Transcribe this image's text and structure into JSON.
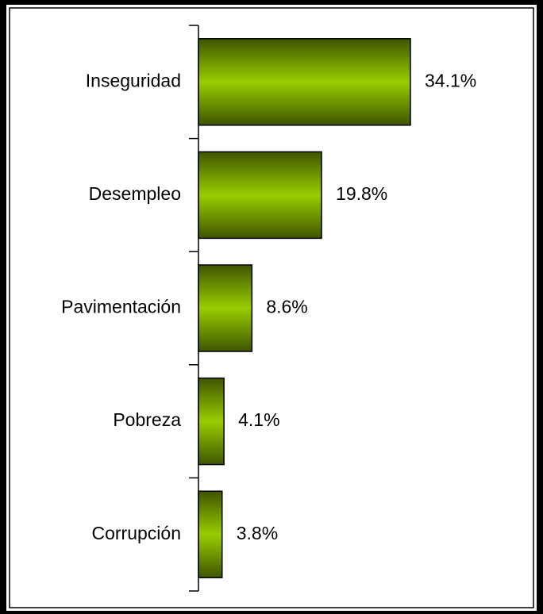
{
  "chart_data": {
    "type": "bar",
    "orientation": "horizontal",
    "categories": [
      "Inseguridad",
      "Desempleo",
      "Pavimentación",
      "Pobreza",
      "Corrupción"
    ],
    "values": [
      34.1,
      19.8,
      8.6,
      4.1,
      3.8
    ],
    "value_labels": [
      "34.1%",
      "19.8%",
      "8.6%",
      "4.1%",
      "3.8%"
    ],
    "color": "#99cc00"
  }
}
